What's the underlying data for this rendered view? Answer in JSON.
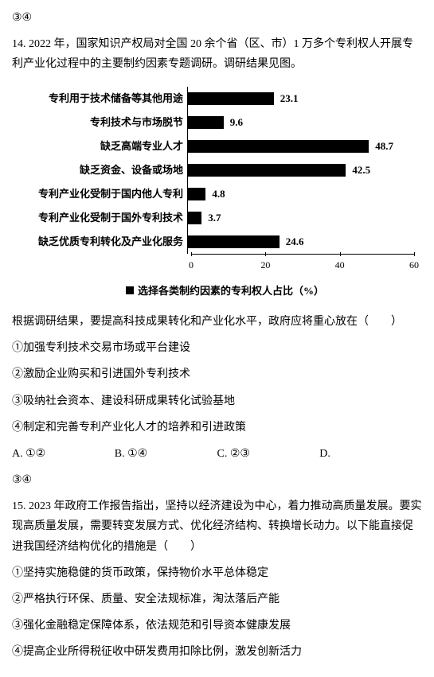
{
  "q13_suffix": "③④",
  "q14": {
    "number": "14.",
    "intro": "2022 年，国家知识产权局对全国 20 余个省（区、市）1 万多个专利权人开展专利产业化过程中的主要制约因素专题调研。调研结果见图。",
    "chart": {
      "type": "bar",
      "orientation": "horizontal",
      "bar_color": "#000000",
      "background_color": "#ffffff",
      "value_fontsize": 13,
      "label_fontsize": 13,
      "xmax": 60,
      "xstep": 20,
      "xticks": [
        0,
        20,
        40,
        60
      ],
      "items": [
        {
          "label": "专利用于技术储备等其他用途",
          "value": 23.1
        },
        {
          "label": "专利技术与市场脱节",
          "value": 9.6
        },
        {
          "label": "缺乏高端专业人才",
          "value": 48.7
        },
        {
          "label": "缺乏资金、设备或场地",
          "value": 42.5
        },
        {
          "label": "专利产业化受制于国内他人专利",
          "value": 4.8
        },
        {
          "label": "专利产业化受制于国外专利技术",
          "value": 3.7
        },
        {
          "label": "缺乏优质专利转化及产业化服务",
          "value": 24.6
        }
      ],
      "legend": "选择各类制约因素的专利权人占比（%）"
    },
    "stem": "根据调研结果，要提高科技成果转化和产业化水平，政府应将重心放在（　　）",
    "statements": [
      "①加强专利技术交易市场或平台建设",
      "②激励企业购买和引进国外专利技术",
      "③吸纳社会资本、建设科研成果转化试验基地",
      "④制定和完善专利产业化人才的培养和引进政策"
    ],
    "options": {
      "a": "A. ①②",
      "b": "B. ①④",
      "c": "C. ②③",
      "d": "D."
    },
    "options_suffix": "③④"
  },
  "q15": {
    "number": "15.",
    "intro": "2023 年政府工作报告指出，坚持以经济建设为中心，着力推动高质量发展。要实现高质量发展，需要转变发展方式、优化经济结构、转换增长动力。以下能直接促进我国经济结构优化的措施是（　　）",
    "statements": [
      "①坚持实施稳健的货币政策，保持物价水平总体稳定",
      "②严格执行环保、质量、安全法规标准，淘汰落后产能",
      "③强化金融稳定保障体系，依法规范和引导资本健康发展",
      "④提高企业所得税征收中研发费用扣除比例，激发创新活力"
    ]
  }
}
